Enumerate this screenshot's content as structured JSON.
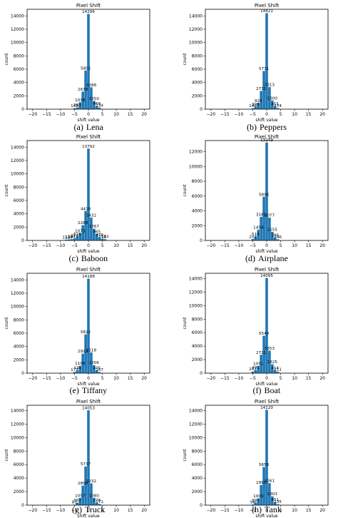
{
  "figure": {
    "panels": [
      {
        "letter": "(a)",
        "name": "Lena"
      },
      {
        "letter": "(b)",
        "name": "Peppers"
      },
      {
        "letter": "(c)",
        "name": "Baboon"
      },
      {
        "letter": "(d)",
        "name": "Airplane"
      },
      {
        "letter": "(e)",
        "name": "Tiffany"
      },
      {
        "letter": "(f)",
        "name": "Boat"
      },
      {
        "letter": "(g)",
        "name": "Truck"
      },
      {
        "letter": "(h)",
        "name": "Tank"
      }
    ]
  },
  "colors": {
    "bar": "#1f77b4"
  },
  "chart_data": [
    {
      "type": "bar",
      "title": "Pixel Shift",
      "xlabel": "shift value",
      "ylabel": "count",
      "xlim": [
        -22,
        22
      ],
      "ylim": [
        0,
        15000
      ],
      "xticks": [
        -20,
        -15,
        -10,
        -5,
        0,
        5,
        10,
        15,
        20
      ],
      "yticks": [
        0,
        2000,
        4000,
        6000,
        8000,
        10000,
        12000,
        14000
      ],
      "x": [
        -5,
        -4,
        -3,
        -2,
        -1,
        0,
        1,
        2,
        3,
        4
      ],
      "values": [
        148,
        250,
        1038,
        2638,
        5802,
        14296,
        3288,
        1250,
        469,
        234
      ]
    },
    {
      "type": "bar",
      "title": "Pixel Shift",
      "xlabel": "shift value",
      "ylabel": "count",
      "xlim": [
        -22,
        22
      ],
      "ylim": [
        0,
        15000
      ],
      "xticks": [
        -20,
        -15,
        -10,
        -5,
        0,
        5,
        10,
        15,
        20
      ],
      "yticks": [
        0,
        2000,
        4000,
        6000,
        8000,
        10000,
        12000,
        14000
      ],
      "x": [
        -5,
        -4,
        -3,
        -2,
        -1,
        0,
        1,
        2,
        3,
        4
      ],
      "values": [
        146,
        398,
        926,
        2731,
        5731,
        14421,
        3313,
        1300,
        455,
        174
      ]
    },
    {
      "type": "bar",
      "title": "Pixel Shift",
      "xlabel": "shift value",
      "ylabel": "count",
      "xlim": [
        -22,
        22
      ],
      "ylim": [
        0,
        15000
      ],
      "xticks": [
        -20,
        -15,
        -10,
        -5,
        0,
        5,
        10,
        15,
        20
      ],
      "yticks": [
        0,
        2000,
        4000,
        6000,
        8000,
        10000,
        12000,
        14000
      ],
      "x": [
        -8,
        -7,
        -6,
        -5,
        -4,
        -3,
        -2,
        -1,
        0,
        1,
        2,
        3,
        4,
        5,
        6
      ],
      "values": [
        112,
        148,
        194,
        319,
        616,
        1073,
        2288,
        4418,
        13792,
        3432,
        1767,
        965,
        479,
        253,
        187
      ]
    },
    {
      "type": "bar",
      "title": "Pixel Shift",
      "xlabel": "shift value",
      "ylabel": "count",
      "xlim": [
        -22,
        22
      ],
      "ylim": [
        0,
        13500
      ],
      "xticks": [
        -20,
        -15,
        -10,
        -5,
        0,
        5,
        10,
        15,
        20
      ],
      "yticks": [
        0,
        2000,
        4000,
        6000,
        8000,
        10000,
        12000
      ],
      "x": [
        -5,
        -4,
        -3,
        -2,
        -1,
        0,
        1,
        2,
        3,
        4
      ],
      "values": [
        203,
        516,
        1454,
        3181,
        5896,
        13249,
        3077,
        1155,
        396,
        146
      ]
    },
    {
      "type": "bar",
      "title": "Pixel Shift",
      "xlabel": "shift value",
      "ylabel": "count",
      "xlim": [
        -22,
        22
      ],
      "ylim": [
        0,
        15000
      ],
      "xticks": [
        -20,
        -15,
        -10,
        -5,
        0,
        5,
        10,
        15,
        20
      ],
      "yticks": [
        0,
        2000,
        4000,
        6000,
        8000,
        10000,
        12000,
        14000
      ],
      "x": [
        -5,
        -4,
        -3,
        -2,
        -1,
        0,
        1,
        2,
        3,
        4
      ],
      "values": [
        177,
        434,
        1106,
        2923,
        5822,
        14188,
        3118,
        1206,
        445,
        157
      ]
    },
    {
      "type": "bar",
      "title": "Pixel Shift",
      "xlabel": "shift value",
      "ylabel": "count",
      "xlim": [
        -22,
        22
      ],
      "ylim": [
        0,
        14800
      ],
      "xticks": [
        -20,
        -15,
        -10,
        -5,
        0,
        5,
        10,
        15,
        20
      ],
      "yticks": [
        0,
        2000,
        4000,
        6000,
        8000,
        10000,
        12000,
        14000
      ],
      "x": [
        -5,
        -4,
        -3,
        -2,
        -1,
        0,
        1,
        2,
        3,
        4
      ],
      "values": [
        247,
        492,
        1051,
        2721,
        5540,
        14095,
        3353,
        1325,
        414,
        211
      ]
    },
    {
      "type": "bar",
      "title": "Pixel Shift",
      "xlabel": "shift value",
      "ylabel": "count",
      "xlim": [
        -22,
        22
      ],
      "ylim": [
        0,
        14800
      ],
      "xticks": [
        -20,
        -15,
        -10,
        -5,
        0,
        5,
        10,
        15,
        20
      ],
      "yticks": [
        0,
        2000,
        4000,
        6000,
        8000,
        10000,
        12000,
        14000
      ],
      "x": [
        -5,
        -4,
        -3,
        -2,
        -1,
        0,
        1,
        2,
        3,
        4
      ],
      "values": [
        81,
        367,
        1057,
        2898,
        5737,
        14053,
        3232,
        1080,
        378,
        171
      ]
    },
    {
      "type": "bar",
      "title": "Pixel Shift",
      "xlabel": "shift value",
      "ylabel": "count",
      "xlim": [
        -22,
        22
      ],
      "ylim": [
        0,
        14800
      ],
      "xticks": [
        -20,
        -15,
        -10,
        -5,
        0,
        5,
        10,
        15,
        20
      ],
      "yticks": [
        0,
        2000,
        4000,
        6000,
        8000,
        10000,
        12000,
        14000
      ],
      "x": [
        -5,
        -4,
        -3,
        -2,
        -1,
        0,
        1,
        2,
        3,
        4
      ],
      "values": [
        98,
        391,
        1009,
        2993,
        5658,
        14120,
        3261,
        1303,
        451,
        135
      ]
    }
  ]
}
